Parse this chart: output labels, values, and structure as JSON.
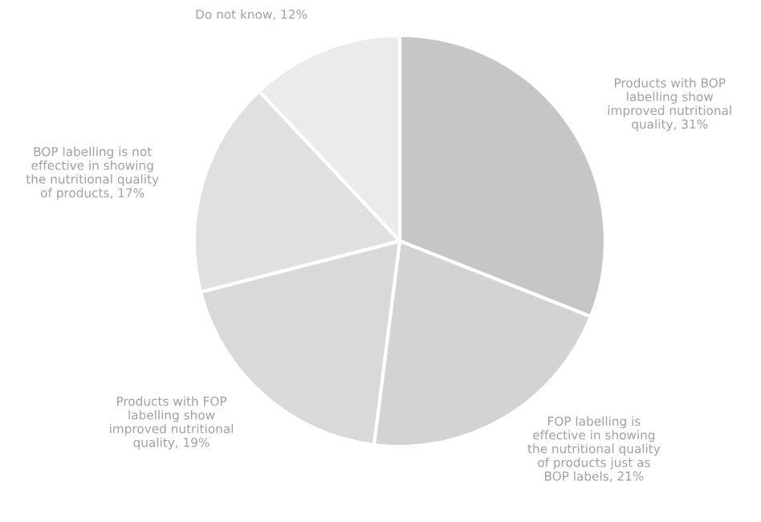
{
  "chart_data": {
    "type": "pie",
    "categories": [
      "Products with BOP\nlabelling show\nimproved nutritional\nquality",
      "FOP labelling is\neffective in showing\nthe nutritional quality\nof products just as\nBOP labels",
      "Products with FOP\nlabelling show\nimproved nutritional\nquality",
      "BOP labelling is not\neffective in showing\nthe nutritional quality\nof products",
      "Do not know"
    ],
    "values": [
      31,
      21,
      19,
      17,
      12
    ],
    "value_labels": [
      "31%",
      "21%",
      "19%",
      "17%",
      "12%"
    ],
    "colors": [
      "#c6c6c6",
      "#d3d3d3",
      "#d9d9d9",
      "#e0e0e0",
      "#ebebeb"
    ],
    "legend": false
  }
}
